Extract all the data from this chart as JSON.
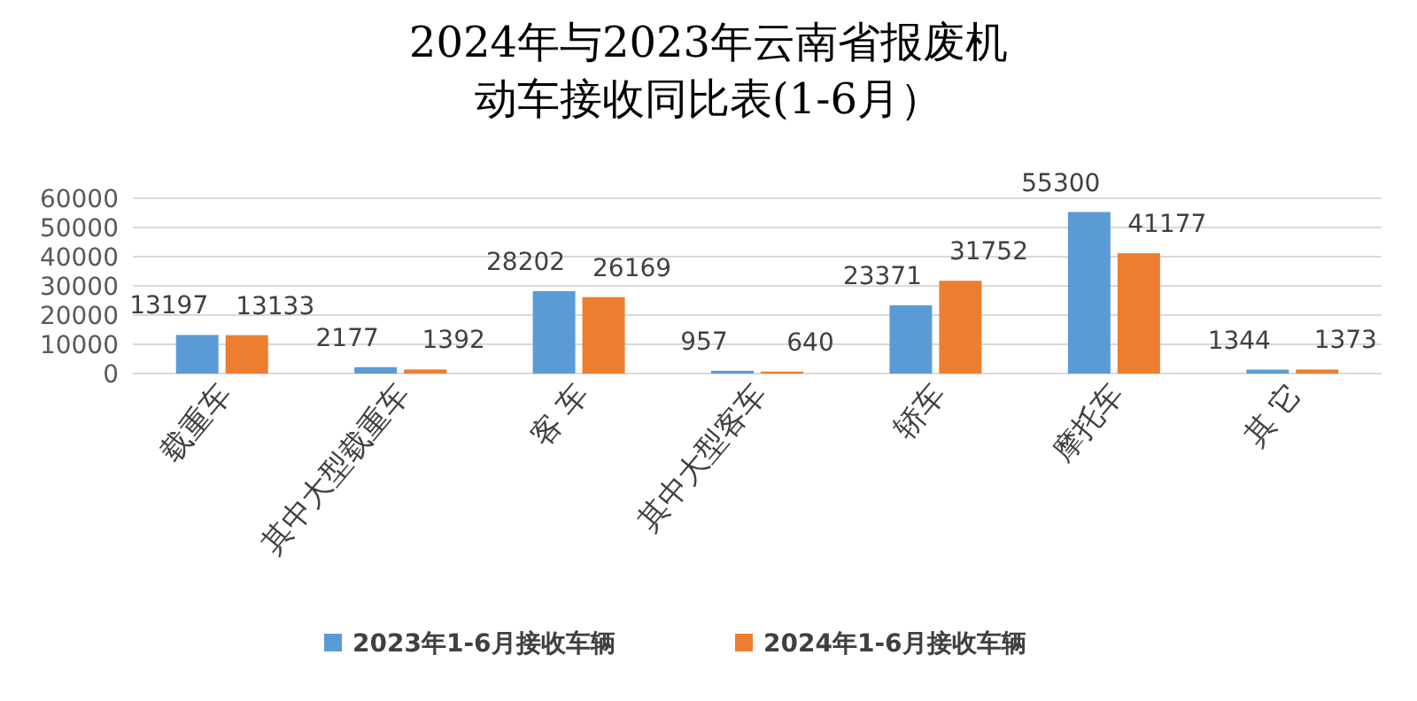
{
  "chart_data": {
    "type": "bar",
    "title": "2024年与2023年云南省报废机动车接收同比表(1-6月）",
    "categories": [
      "载重车",
      "其中大型载重车",
      "客 车",
      "其中大型客车",
      "轿车",
      "摩托车",
      "其 它"
    ],
    "series": [
      {
        "name": "2023年1-6月接收车辆",
        "color": "#5b9bd5",
        "values": [
          13197,
          2177,
          28202,
          957,
          23371,
          55300,
          1344
        ]
      },
      {
        "name": "2024年1-6月接收车辆",
        "color": "#ed7d31",
        "values": [
          13133,
          1392,
          26169,
          640,
          31752,
          41177,
          1373
        ]
      }
    ],
    "ylim": [
      0,
      60000
    ],
    "yticks": [
      0,
      10000,
      20000,
      30000,
      40000,
      50000,
      60000
    ],
    "grid": "y",
    "legend": "bottom",
    "data_labels": true
  }
}
